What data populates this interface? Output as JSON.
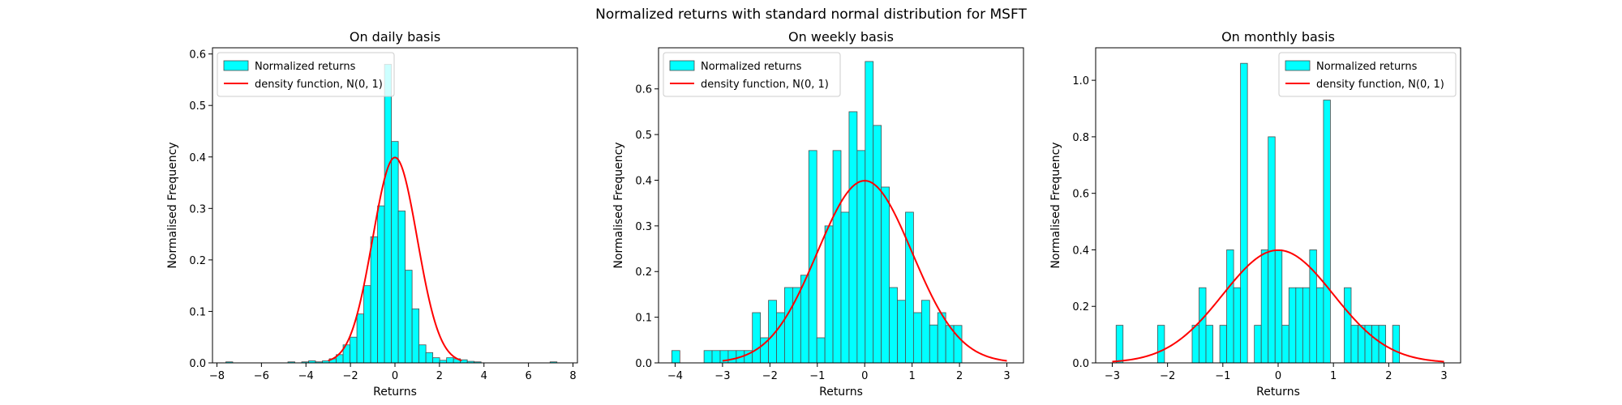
{
  "suptitle": "Normalized returns with standard normal distribution for MSFT",
  "colors": {
    "bar_fill": "#00ffff",
    "bar_edge": "#4d4d4d",
    "curve": "#ff0000",
    "axes": "#000000",
    "legend_edge": "#cccccc"
  },
  "chart_data": [
    {
      "type": "bar",
      "title": "On daily basis",
      "xlabel": "Returns",
      "ylabel": "Normalised Frequency",
      "xlim": [
        -8.2,
        8.2
      ],
      "ylim": [
        0,
        0.612
      ],
      "xticks": [
        -8,
        -6,
        -4,
        -2,
        0,
        2,
        4,
        6,
        8
      ],
      "xtick_labels": [
        "−8",
        "−6",
        "−4",
        "−2",
        "0",
        "2",
        "4",
        "6",
        "8"
      ],
      "yticks": [
        0,
        0.1,
        0.2,
        0.3,
        0.4,
        0.5,
        0.6
      ],
      "ytick_labels": [
        "0.0",
        "0.1",
        "0.2",
        "0.3",
        "0.4",
        "0.5",
        "0.6"
      ],
      "grid": false,
      "legend": {
        "location": "upper-left",
        "entries": [
          {
            "label": "Normalized returns",
            "kind": "patch"
          },
          {
            "label": "density function, N(0, 1)",
            "kind": "line"
          }
        ]
      },
      "bar_edges": [
        -7.6,
        -7.29,
        -6.98,
        -6.67,
        -6.36,
        -6.05,
        -5.74,
        -5.43,
        -5.12,
        -4.81,
        -4.5,
        -4.19,
        -3.88,
        -3.57,
        -3.26,
        -2.95,
        -2.64,
        -2.33,
        -2.02,
        -1.71,
        -1.4,
        -1.09,
        -0.78,
        -0.47,
        -0.16,
        0.15,
        0.46,
        0.77,
        1.08,
        1.39,
        1.7,
        2.01,
        2.32,
        2.63,
        2.94,
        3.25,
        3.56,
        3.87,
        4.18,
        4.49,
        4.8,
        5.11,
        5.42,
        5.73,
        6.04,
        6.35,
        6.66,
        6.97,
        7.28
      ],
      "bar_values": [
        0.002,
        0,
        0,
        0,
        0,
        0,
        0,
        0,
        0,
        0.002,
        0,
        0.002,
        0.004,
        0.002,
        0.004,
        0.008,
        0.016,
        0.035,
        0.05,
        0.095,
        0.15,
        0.245,
        0.305,
        0.58,
        0.43,
        0.295,
        0.18,
        0.105,
        0.035,
        0.02,
        0.01,
        0.005,
        0.01,
        0.008,
        0.006,
        0.003,
        0.002,
        0,
        0,
        0,
        0,
        0,
        0,
        0,
        0,
        0,
        0,
        0.002
      ],
      "curve": {
        "name": "density function, N(0, 1)",
        "function": "standard-normal-pdf",
        "x_range": [
          -3,
          3
        ]
      }
    },
    {
      "type": "bar",
      "title": "On weekly basis",
      "xlabel": "Returns",
      "ylabel": "Normalised Frequency",
      "xlim": [
        -4.35,
        3.35
      ],
      "ylim": [
        0,
        0.69
      ],
      "xticks": [
        -4,
        -3,
        -2,
        -1,
        0,
        1,
        2,
        3
      ],
      "xtick_labels": [
        "−4",
        "−3",
        "−2",
        "−1",
        "0",
        "1",
        "2",
        "3"
      ],
      "yticks": [
        0,
        0.1,
        0.2,
        0.3,
        0.4,
        0.5,
        0.6
      ],
      "ytick_labels": [
        "0.0",
        "0.1",
        "0.2",
        "0.3",
        "0.4",
        "0.5",
        "0.6"
      ],
      "grid": false,
      "legend": {
        "location": "upper-left",
        "entries": [
          {
            "label": "Normalized returns",
            "kind": "patch"
          },
          {
            "label": "density function, N(0, 1)",
            "kind": "line"
          }
        ]
      },
      "bar_edges": [
        -4.07,
        -3.9,
        -3.73,
        -3.56,
        -3.39,
        -3.22,
        -3.05,
        -2.88,
        -2.71,
        -2.54,
        -2.37,
        -2.2,
        -2.03,
        -1.86,
        -1.69,
        -1.52,
        -1.35,
        -1.18,
        -1.01,
        -0.84,
        -0.67,
        -0.5,
        -0.33,
        -0.16,
        0.01,
        0.18,
        0.35,
        0.52,
        0.69,
        0.86,
        1.03,
        1.2,
        1.37,
        1.54,
        1.71,
        1.88,
        2.05
      ],
      "bar_values": [
        0.027,
        0,
        0,
        0,
        0.027,
        0.027,
        0.027,
        0.027,
        0.027,
        0.027,
        0.11,
        0.055,
        0.137,
        0.11,
        0.165,
        0.165,
        0.192,
        0.465,
        0.055,
        0.3,
        0.465,
        0.33,
        0.55,
        0.465,
        0.66,
        0.52,
        0.385,
        0.165,
        0.137,
        0.33,
        0.11,
        0.137,
        0.083,
        0.11,
        0.082,
        0.082
      ],
      "curve": {
        "name": "density function, N(0, 1)",
        "function": "standard-normal-pdf",
        "x_range": [
          -3,
          3
        ]
      }
    },
    {
      "type": "bar",
      "title": "On monthly basis",
      "xlabel": "Returns",
      "ylabel": "Normalised Frequency",
      "xlim": [
        -3.3,
        3.3
      ],
      "ylim": [
        0,
        1.115
      ],
      "xticks": [
        -3,
        -2,
        -1,
        0,
        1,
        2,
        3
      ],
      "xtick_labels": [
        "−3",
        "−2",
        "−1",
        "0",
        "1",
        "2",
        "3"
      ],
      "yticks": [
        0,
        0.2,
        0.4,
        0.6,
        0.8,
        1.0
      ],
      "ytick_labels": [
        "0.0",
        "0.2",
        "0.4",
        "0.6",
        "0.8",
        "1.0"
      ],
      "grid": false,
      "legend": {
        "location": "upper-right",
        "entries": [
          {
            "label": "Normalized returns",
            "kind": "patch"
          },
          {
            "label": "density function, N(0, 1)",
            "kind": "line"
          }
        ]
      },
      "bar_edges": [
        -2.93,
        -2.805,
        -2.68,
        -2.555,
        -2.43,
        -2.305,
        -2.18,
        -2.055,
        -1.93,
        -1.805,
        -1.68,
        -1.555,
        -1.43,
        -1.305,
        -1.18,
        -1.055,
        -0.93,
        -0.805,
        -0.68,
        -0.555,
        -0.43,
        -0.305,
        -0.18,
        -0.055,
        0.07,
        0.195,
        0.32,
        0.445,
        0.57,
        0.695,
        0.82,
        0.945,
        1.07,
        1.195,
        1.32,
        1.445,
        1.57,
        1.695,
        1.82,
        1.945,
        2.07,
        2.195
      ],
      "bar_values": [
        0.133,
        0,
        0,
        0,
        0,
        0,
        0.133,
        0,
        0,
        0,
        0,
        0.133,
        0.266,
        0.133,
        0,
        0.133,
        0.4,
        0.266,
        1.06,
        0,
        0.133,
        0.4,
        0.8,
        0.4,
        0.133,
        0.266,
        0.266,
        0.266,
        0.4,
        0.266,
        0.93,
        0,
        0,
        0.266,
        0.133,
        0.133,
        0.133,
        0.133,
        0.133,
        0,
        0.133
      ],
      "curve": {
        "name": "density function, N(0, 1)",
        "function": "standard-normal-pdf",
        "x_range": [
          -3,
          3
        ]
      }
    }
  ]
}
